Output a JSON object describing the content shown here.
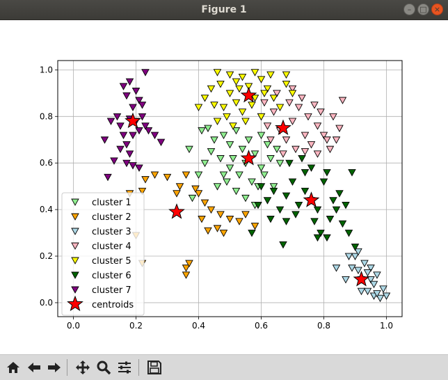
{
  "window": {
    "title": "Figure 1"
  },
  "toolbar": {
    "buttons": [
      {
        "icon": "home-icon"
      },
      {
        "icon": "back-arrow-icon"
      },
      {
        "icon": "forward-arrow-icon"
      },
      {
        "icon": "pan-icon"
      },
      {
        "icon": "zoom-icon"
      },
      {
        "icon": "configure-subplots-icon"
      },
      {
        "icon": "save-icon"
      }
    ]
  },
  "chart_data": {
    "type": "scatter",
    "title": "",
    "xlabel": "",
    "ylabel": "",
    "xlim": [
      -0.05,
      1.05
    ],
    "ylim": [
      -0.06,
      1.04
    ],
    "xticks": [
      "0.0",
      "0.2",
      "0.4",
      "0.6",
      "0.8",
      "1.0"
    ],
    "yticks": [
      "0.0",
      "0.2",
      "0.4",
      "0.6",
      "0.8",
      "1.0"
    ],
    "grid": true,
    "legend_position": "lower-left",
    "series": [
      {
        "name": "cluster 1",
        "marker": "triangle-down",
        "color": "#90ee90",
        "points": [
          [
            0.48,
            0.72
          ],
          [
            0.5,
            0.68
          ],
          [
            0.52,
            0.74
          ],
          [
            0.54,
            0.66
          ],
          [
            0.56,
            0.7
          ],
          [
            0.58,
            0.64
          ],
          [
            0.6,
            0.72
          ],
          [
            0.62,
            0.68
          ],
          [
            0.55,
            0.6
          ],
          [
            0.5,
            0.58
          ],
          [
            0.47,
            0.62
          ],
          [
            0.45,
            0.7
          ],
          [
            0.53,
            0.55
          ],
          [
            0.57,
            0.52
          ],
          [
            0.6,
            0.58
          ],
          [
            0.63,
            0.62
          ],
          [
            0.65,
            0.66
          ],
          [
            0.52,
            0.48
          ],
          [
            0.55,
            0.45
          ],
          [
            0.58,
            0.42
          ],
          [
            0.49,
            0.52
          ],
          [
            0.44,
            0.65
          ],
          [
            0.42,
            0.6
          ],
          [
            0.4,
            0.55
          ],
          [
            0.46,
            0.5
          ],
          [
            0.51,
            0.62
          ],
          [
            0.59,
            0.5
          ],
          [
            0.61,
            0.55
          ],
          [
            0.66,
            0.6
          ],
          [
            0.64,
            0.5
          ],
          [
            0.41,
            0.74
          ],
          [
            0.43,
            0.75
          ],
          [
            0.37,
            0.66
          ],
          [
            0.38,
            0.45
          ],
          [
            0.48,
            0.55
          ]
        ]
      },
      {
        "name": "cluster 2",
        "marker": "triangle-down",
        "color": "#ffa500",
        "points": [
          [
            0.18,
            0.47
          ],
          [
            0.22,
            0.48
          ],
          [
            0.26,
            0.55
          ],
          [
            0.3,
            0.54
          ],
          [
            0.33,
            0.47
          ],
          [
            0.36,
            0.55
          ],
          [
            0.4,
            0.47
          ],
          [
            0.42,
            0.43
          ],
          [
            0.44,
            0.4
          ],
          [
            0.47,
            0.38
          ],
          [
            0.5,
            0.36
          ],
          [
            0.53,
            0.35
          ],
          [
            0.55,
            0.38
          ],
          [
            0.58,
            0.33
          ],
          [
            0.46,
            0.32
          ],
          [
            0.48,
            0.3
          ],
          [
            0.43,
            0.31
          ],
          [
            0.36,
            0.15
          ],
          [
            0.36,
            0.12
          ],
          [
            0.37,
            0.17
          ],
          [
            0.22,
            0.17
          ],
          [
            0.2,
            0.29
          ],
          [
            0.23,
            0.53
          ],
          [
            0.34,
            0.5
          ],
          [
            0.39,
            0.49
          ],
          [
            0.41,
            0.36
          ]
        ]
      },
      {
        "name": "cluster 3",
        "marker": "triangle-down",
        "color": "#add8e6",
        "points": [
          [
            0.84,
            0.15
          ],
          [
            0.87,
            0.1
          ],
          [
            0.89,
            0.15
          ],
          [
            0.9,
            0.2
          ],
          [
            0.91,
            0.14
          ],
          [
            0.92,
            0.1
          ],
          [
            0.93,
            0.17
          ],
          [
            0.94,
            0.05
          ],
          [
            0.95,
            0.1
          ],
          [
            0.96,
            0.03
          ],
          [
            0.97,
            0.12
          ],
          [
            0.98,
            0.02
          ],
          [
            0.99,
            0.06
          ],
          [
            1.0,
            0.03
          ],
          [
            0.95,
            0.15
          ],
          [
            0.92,
            0.05
          ],
          [
            0.88,
            0.2
          ],
          [
            0.91,
            0.22
          ],
          [
            0.94,
            0.13
          ],
          [
            0.96,
            0.08
          ],
          [
            0.97,
            0.04
          ]
        ]
      },
      {
        "name": "cluster 4",
        "marker": "triangle-down",
        "color": "#ffb6c1",
        "points": [
          [
            0.6,
            0.8
          ],
          [
            0.62,
            0.76
          ],
          [
            0.64,
            0.82
          ],
          [
            0.66,
            0.74
          ],
          [
            0.68,
            0.7
          ],
          [
            0.7,
            0.78
          ],
          [
            0.72,
            0.84
          ],
          [
            0.74,
            0.72
          ],
          [
            0.76,
            0.68
          ],
          [
            0.78,
            0.76
          ],
          [
            0.8,
            0.72
          ],
          [
            0.82,
            0.66
          ],
          [
            0.69,
            0.86
          ],
          [
            0.73,
            0.88
          ],
          [
            0.75,
            0.8
          ],
          [
            0.77,
            0.85
          ],
          [
            0.79,
            0.82
          ],
          [
            0.71,
            0.66
          ],
          [
            0.67,
            0.64
          ],
          [
            0.63,
            0.7
          ],
          [
            0.65,
            0.9
          ],
          [
            0.7,
            0.92
          ],
          [
            0.83,
            0.8
          ],
          [
            0.85,
            0.75
          ],
          [
            0.86,
            0.87
          ],
          [
            0.78,
            0.64
          ],
          [
            0.81,
            0.7
          ],
          [
            0.61,
            0.86
          ],
          [
            0.74,
            0.65
          ],
          [
            0.84,
            0.7
          ]
        ]
      },
      {
        "name": "cluster 5",
        "marker": "triangle-down",
        "color": "#ffff00",
        "points": [
          [
            0.46,
            0.99
          ],
          [
            0.5,
            0.98
          ],
          [
            0.52,
            0.95
          ],
          [
            0.54,
            0.97
          ],
          [
            0.56,
            0.93
          ],
          [
            0.58,
            0.99
          ],
          [
            0.6,
            0.96
          ],
          [
            0.62,
            0.92
          ],
          [
            0.64,
            0.88
          ],
          [
            0.66,
            0.84
          ],
          [
            0.68,
            0.94
          ],
          [
            0.7,
            0.9
          ],
          [
            0.5,
            0.9
          ],
          [
            0.52,
            0.86
          ],
          [
            0.54,
            0.82
          ],
          [
            0.48,
            0.84
          ],
          [
            0.46,
            0.78
          ],
          [
            0.44,
            0.92
          ],
          [
            0.42,
            0.88
          ],
          [
            0.45,
            0.85
          ],
          [
            0.57,
            0.85
          ],
          [
            0.6,
            0.8
          ],
          [
            0.55,
            0.78
          ],
          [
            0.51,
            0.76
          ],
          [
            0.63,
            0.98
          ],
          [
            0.68,
            0.98
          ],
          [
            0.47,
            0.94
          ],
          [
            0.53,
            0.92
          ],
          [
            0.58,
            0.88
          ],
          [
            0.61,
            0.9
          ],
          [
            0.4,
            0.84
          ],
          [
            0.49,
            0.8
          ]
        ]
      },
      {
        "name": "cluster 6",
        "marker": "triangle-down",
        "color": "#006400",
        "points": [
          [
            0.6,
            0.5
          ],
          [
            0.62,
            0.44
          ],
          [
            0.64,
            0.48
          ],
          [
            0.66,
            0.4
          ],
          [
            0.68,
            0.46
          ],
          [
            0.7,
            0.52
          ],
          [
            0.72,
            0.42
          ],
          [
            0.74,
            0.48
          ],
          [
            0.76,
            0.44
          ],
          [
            0.78,
            0.4
          ],
          [
            0.8,
            0.52
          ],
          [
            0.82,
            0.36
          ],
          [
            0.84,
            0.4
          ],
          [
            0.86,
            0.34
          ],
          [
            0.88,
            0.3
          ],
          [
            0.9,
            0.24
          ],
          [
            0.79,
            0.3
          ],
          [
            0.81,
            0.56
          ],
          [
            0.74,
            0.56
          ],
          [
            0.69,
            0.6
          ],
          [
            0.73,
            0.62
          ],
          [
            0.76,
            0.58
          ],
          [
            0.85,
            0.47
          ],
          [
            0.87,
            0.42
          ],
          [
            0.59,
            0.42
          ],
          [
            0.57,
            0.3
          ],
          [
            0.63,
            0.36
          ],
          [
            0.68,
            0.35
          ],
          [
            0.71,
            0.38
          ],
          [
            0.77,
            0.35
          ],
          [
            0.83,
            0.44
          ],
          [
            0.89,
            0.56
          ],
          [
            0.67,
            0.25
          ],
          [
            0.78,
            0.28
          ],
          [
            0.81,
            0.28
          ]
        ]
      },
      {
        "name": "cluster 7",
        "marker": "triangle-down",
        "color": "#800080",
        "points": [
          [
            0.16,
            0.93
          ],
          [
            0.17,
            0.89
          ],
          [
            0.18,
            0.95
          ],
          [
            0.19,
            0.84
          ],
          [
            0.2,
            0.91
          ],
          [
            0.21,
            0.87
          ],
          [
            0.22,
            0.85
          ],
          [
            0.23,
            0.99
          ],
          [
            0.14,
            0.8
          ],
          [
            0.15,
            0.76
          ],
          [
            0.16,
            0.72
          ],
          [
            0.17,
            0.68
          ],
          [
            0.18,
            0.64
          ],
          [
            0.19,
            0.72
          ],
          [
            0.2,
            0.78
          ],
          [
            0.21,
            0.74
          ],
          [
            0.22,
            0.8
          ],
          [
            0.24,
            0.74
          ],
          [
            0.26,
            0.72
          ],
          [
            0.28,
            0.69
          ],
          [
            0.13,
            0.61
          ],
          [
            0.15,
            0.66
          ],
          [
            0.17,
            0.6
          ],
          [
            0.19,
            0.59
          ],
          [
            0.21,
            0.58
          ],
          [
            0.11,
            0.54
          ],
          [
            0.1,
            0.7
          ],
          [
            0.12,
            0.78
          ],
          [
            0.18,
            0.79
          ],
          [
            0.23,
            0.76
          ]
        ]
      },
      {
        "name": "centroids",
        "marker": "star",
        "color": "#ff0000",
        "points": [
          [
            0.19,
            0.78
          ],
          [
            0.33,
            0.39
          ],
          [
            0.56,
            0.62
          ],
          [
            0.56,
            0.89
          ],
          [
            0.67,
            0.75
          ],
          [
            0.76,
            0.44
          ],
          [
            0.92,
            0.1
          ]
        ]
      }
    ]
  }
}
